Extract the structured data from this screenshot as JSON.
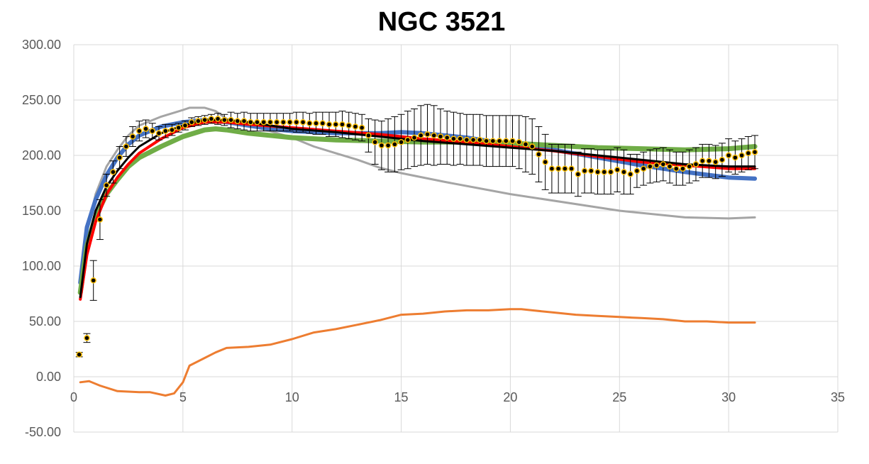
{
  "chart_data": {
    "type": "line",
    "title": "NGC 3521",
    "xlabel": "",
    "ylabel": "",
    "xlim": [
      0,
      35
    ],
    "ylim": [
      -50,
      300
    ],
    "x_ticks": [
      "0",
      "5",
      "10",
      "15",
      "20",
      "25",
      "30",
      "35"
    ],
    "y_ticks": [
      "-50.00",
      "0.00",
      "50.00",
      "100.00",
      "150.00",
      "200.00",
      "250.00",
      "300.00"
    ],
    "grid": true,
    "legend": "none",
    "series": [
      {
        "color": "#a5a5a5",
        "width": 3,
        "points": [
          [
            0.3,
            75
          ],
          [
            0.6,
            130
          ],
          [
            1,
            165
          ],
          [
            1.5,
            190
          ],
          [
            2,
            205
          ],
          [
            2.5,
            218
          ],
          [
            3,
            227
          ],
          [
            4,
            235
          ],
          [
            5,
            241
          ],
          [
            5.3,
            243
          ],
          [
            6,
            243
          ],
          [
            6.5,
            240
          ],
          [
            7,
            233
          ],
          [
            8,
            227
          ],
          [
            9,
            222
          ],
          [
            10,
            216
          ],
          [
            11,
            208
          ],
          [
            12,
            202
          ],
          [
            13,
            196
          ],
          [
            14,
            189
          ],
          [
            15,
            184
          ],
          [
            17,
            176
          ],
          [
            20,
            165
          ],
          [
            25,
            150
          ],
          [
            28,
            144
          ],
          [
            30,
            143
          ],
          [
            31.2,
            144
          ]
        ]
      },
      {
        "color": "#4472c4",
        "width": 6,
        "points": [
          [
            0.3,
            85
          ],
          [
            0.6,
            135
          ],
          [
            1,
            160
          ],
          [
            1.5,
            182
          ],
          [
            2,
            198
          ],
          [
            2.5,
            210
          ],
          [
            3,
            218
          ],
          [
            4,
            226
          ],
          [
            5,
            230
          ],
          [
            6,
            232
          ],
          [
            7,
            230
          ],
          [
            8,
            227
          ],
          [
            9,
            224
          ],
          [
            10,
            222
          ],
          [
            12,
            220
          ],
          [
            14,
            220
          ],
          [
            15,
            221
          ],
          [
            16,
            220
          ],
          [
            18,
            216
          ],
          [
            20,
            210
          ],
          [
            22,
            205
          ],
          [
            24,
            198
          ],
          [
            26,
            191
          ],
          [
            28,
            185
          ],
          [
            30,
            180
          ],
          [
            31.2,
            179
          ]
        ]
      },
      {
        "color": "#70ad47",
        "width": 7,
        "points": [
          [
            0.3,
            76
          ],
          [
            0.6,
            118
          ],
          [
            1,
            145
          ],
          [
            1.5,
            165
          ],
          [
            2,
            178
          ],
          [
            2.5,
            190
          ],
          [
            3,
            198
          ],
          [
            4,
            208
          ],
          [
            5,
            217
          ],
          [
            6,
            223
          ],
          [
            6.5,
            224
          ],
          [
            7,
            223
          ],
          [
            8,
            220
          ],
          [
            10,
            216
          ],
          [
            12,
            214
          ],
          [
            14,
            213
          ],
          [
            16,
            212
          ],
          [
            18,
            212
          ],
          [
            20,
            211
          ],
          [
            22,
            209
          ],
          [
            24,
            207
          ],
          [
            26,
            206
          ],
          [
            28,
            205
          ],
          [
            30,
            206
          ],
          [
            31.2,
            208
          ]
        ]
      },
      {
        "color": "#ff0000",
        "width": 4,
        "points": [
          [
            0.3,
            70
          ],
          [
            0.6,
            110
          ],
          [
            1,
            140
          ],
          [
            1.5,
            165
          ],
          [
            2,
            180
          ],
          [
            2.5,
            192
          ],
          [
            3,
            202
          ],
          [
            4,
            215
          ],
          [
            5,
            225
          ],
          [
            6,
            230
          ],
          [
            7,
            230
          ],
          [
            8,
            228
          ],
          [
            10,
            225
          ],
          [
            12,
            222
          ],
          [
            14,
            219
          ],
          [
            16,
            215
          ],
          [
            18,
            212
          ],
          [
            20,
            208
          ],
          [
            22,
            204
          ],
          [
            24,
            199
          ],
          [
            26,
            194
          ],
          [
            28,
            191
          ],
          [
            30,
            188
          ],
          [
            31.2,
            188
          ]
        ]
      },
      {
        "color": "#000000",
        "width": 3,
        "points": [
          [
            0.3,
            72
          ],
          [
            0.6,
            120
          ],
          [
            1,
            150
          ],
          [
            1.5,
            172
          ],
          [
            2,
            186
          ],
          [
            2.5,
            198
          ],
          [
            3,
            208
          ],
          [
            4,
            220
          ],
          [
            5,
            227
          ],
          [
            6,
            232
          ],
          [
            7,
            232
          ],
          [
            8,
            230
          ],
          [
            9,
            227
          ],
          [
            10,
            224
          ],
          [
            12,
            221
          ],
          [
            14,
            217
          ],
          [
            16,
            213
          ],
          [
            18,
            210
          ],
          [
            20,
            207
          ],
          [
            22,
            204
          ],
          [
            24,
            200
          ],
          [
            26,
            196
          ],
          [
            28,
            192
          ],
          [
            30,
            190
          ],
          [
            31.2,
            190
          ]
        ]
      },
      {
        "color": "#ed7d31",
        "width": 3,
        "points": [
          [
            0.3,
            -5
          ],
          [
            0.7,
            -4
          ],
          [
            1.2,
            -8
          ],
          [
            2,
            -13
          ],
          [
            3,
            -14
          ],
          [
            3.5,
            -14
          ],
          [
            4.2,
            -17
          ],
          [
            4.6,
            -15
          ],
          [
            5,
            -5
          ],
          [
            5.3,
            10
          ],
          [
            6,
            17
          ],
          [
            6.5,
            22
          ],
          [
            7,
            26
          ],
          [
            8,
            27
          ],
          [
            9,
            29
          ],
          [
            10,
            34
          ],
          [
            11,
            40
          ],
          [
            12,
            43
          ],
          [
            13,
            47
          ],
          [
            14,
            51
          ],
          [
            15,
            56
          ],
          [
            16,
            57
          ],
          [
            17,
            59
          ],
          [
            18,
            60
          ],
          [
            19,
            60
          ],
          [
            20,
            61
          ],
          [
            20.5,
            61
          ],
          [
            21,
            60
          ],
          [
            22,
            58
          ],
          [
            23,
            56
          ],
          [
            24,
            55
          ],
          [
            25,
            54
          ],
          [
            26,
            53
          ],
          [
            27,
            52
          ],
          [
            28,
            50
          ],
          [
            29,
            50
          ],
          [
            30,
            49
          ],
          [
            31.2,
            49
          ]
        ]
      }
    ],
    "observed": {
      "point_fill": "#000000",
      "point_stroke": "#ffc000",
      "errorbar_color": "#000000",
      "points": [
        [
          0.25,
          20,
          2
        ],
        [
          0.6,
          35,
          4
        ],
        [
          0.9,
          87,
          18
        ],
        [
          1.2,
          142,
          18
        ],
        [
          1.5,
          173,
          10
        ],
        [
          1.8,
          185,
          10
        ],
        [
          2.1,
          198,
          10
        ],
        [
          2.4,
          208,
          9
        ],
        [
          2.7,
          217,
          9
        ],
        [
          3.0,
          222,
          9
        ],
        [
          3.3,
          224,
          8
        ],
        [
          3.6,
          222,
          7
        ],
        [
          3.9,
          220,
          6
        ],
        [
          4.2,
          222,
          6
        ],
        [
          4.5,
          223,
          5
        ],
        [
          4.8,
          225,
          4
        ],
        [
          5.1,
          227,
          4
        ],
        [
          5.4,
          230,
          4
        ],
        [
          5.7,
          231,
          4
        ],
        [
          6.0,
          232,
          4
        ],
        [
          6.3,
          233,
          4
        ],
        [
          6.6,
          233,
          5
        ],
        [
          6.9,
          232,
          5
        ],
        [
          7.2,
          232,
          7
        ],
        [
          7.5,
          231,
          7
        ],
        [
          7.8,
          231,
          8
        ],
        [
          8.1,
          230,
          8
        ],
        [
          8.4,
          230,
          8
        ],
        [
          8.7,
          230,
          8
        ],
        [
          9.0,
          230,
          8
        ],
        [
          9.3,
          230,
          8
        ],
        [
          9.6,
          230,
          8
        ],
        [
          9.9,
          230,
          8
        ],
        [
          10.2,
          230,
          9
        ],
        [
          10.5,
          230,
          9
        ],
        [
          10.8,
          229,
          9
        ],
        [
          11.1,
          229,
          10
        ],
        [
          11.4,
          229,
          10
        ],
        [
          11.7,
          228,
          11
        ],
        [
          12.0,
          228,
          11
        ],
        [
          12.3,
          228,
          12
        ],
        [
          12.6,
          227,
          12
        ],
        [
          12.9,
          226,
          12
        ],
        [
          13.2,
          225,
          12
        ],
        [
          13.5,
          218,
          15
        ],
        [
          13.8,
          212,
          20
        ],
        [
          14.1,
          209,
          22
        ],
        [
          14.4,
          209,
          24
        ],
        [
          14.7,
          210,
          25
        ],
        [
          15.0,
          212,
          25
        ],
        [
          15.3,
          214,
          26
        ],
        [
          15.6,
          216,
          26
        ],
        [
          15.9,
          218,
          27
        ],
        [
          16.2,
          219,
          27
        ],
        [
          16.5,
          218,
          27
        ],
        [
          16.8,
          217,
          25
        ],
        [
          17.1,
          216,
          24
        ],
        [
          17.4,
          215,
          24
        ],
        [
          17.7,
          215,
          23
        ],
        [
          18.0,
          214,
          23
        ],
        [
          18.3,
          214,
          23
        ],
        [
          18.6,
          214,
          23
        ],
        [
          18.9,
          213,
          23
        ],
        [
          19.2,
          213,
          23
        ],
        [
          19.5,
          213,
          23
        ],
        [
          19.8,
          213,
          23
        ],
        [
          20.1,
          213,
          23
        ],
        [
          20.4,
          212,
          24
        ],
        [
          20.7,
          210,
          25
        ],
        [
          21.0,
          208,
          25
        ],
        [
          21.3,
          201,
          25
        ],
        [
          21.6,
          194,
          25
        ],
        [
          21.9,
          188,
          22
        ],
        [
          22.2,
          188,
          22
        ],
        [
          22.5,
          188,
          22
        ],
        [
          22.8,
          188,
          22
        ],
        [
          23.1,
          183,
          20
        ],
        [
          23.4,
          186,
          20
        ],
        [
          23.7,
          186,
          20
        ],
        [
          24.0,
          185,
          20
        ],
        [
          24.3,
          185,
          20
        ],
        [
          24.6,
          185,
          20
        ],
        [
          24.9,
          187,
          20
        ],
        [
          25.2,
          185,
          20
        ],
        [
          25.5,
          183,
          18
        ],
        [
          25.8,
          186,
          15
        ],
        [
          26.1,
          188,
          15
        ],
        [
          26.4,
          190,
          15
        ],
        [
          26.7,
          191,
          15
        ],
        [
          27.0,
          192,
          15
        ],
        [
          27.3,
          190,
          15
        ],
        [
          27.6,
          188,
          15
        ],
        [
          27.9,
          188,
          15
        ],
        [
          28.2,
          190,
          15
        ],
        [
          28.5,
          192,
          15
        ],
        [
          28.8,
          195,
          15
        ],
        [
          29.1,
          195,
          15
        ],
        [
          29.4,
          194,
          15
        ],
        [
          29.7,
          196,
          15
        ],
        [
          30.0,
          200,
          15
        ],
        [
          30.3,
          198,
          15
        ],
        [
          30.6,
          200,
          15
        ],
        [
          30.9,
          202,
          15
        ],
        [
          31.2,
          203,
          15
        ]
      ]
    }
  }
}
